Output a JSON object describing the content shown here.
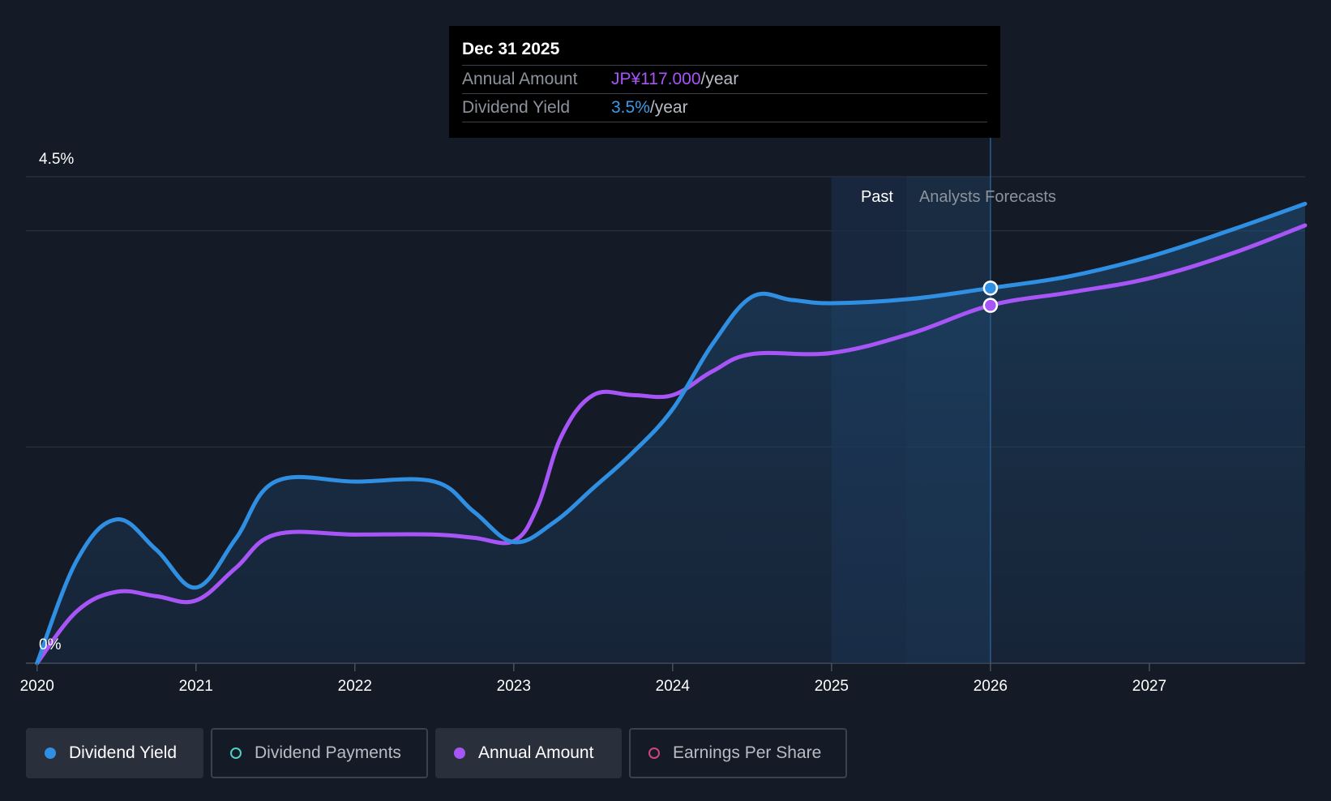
{
  "chart_data": {
    "type": "line",
    "title": "",
    "x_range": [
      2019.93,
      2027.98
    ],
    "y_range": [
      0,
      4.5
    ],
    "y_tick_labels": [
      "4.5%",
      "0%"
    ],
    "x_ticks": [
      2020,
      2021,
      2022,
      2023,
      2024,
      2025,
      2026,
      2027
    ],
    "x_tick_labels": [
      "2020",
      "2021",
      "2022",
      "2023",
      "2024",
      "2025",
      "2026",
      "2027"
    ],
    "gridlines_y": [
      4.5,
      4.0,
      2.0,
      0
    ],
    "regions": {
      "past_start": 2025.0,
      "forecast_start": 2025.47,
      "current": 2026.0,
      "past_label": "Past",
      "forecast_label": "Analysts Forecasts"
    },
    "series": [
      {
        "name": "Dividend Yield",
        "color": "#2f8fe3",
        "unit": "%",
        "points": [
          [
            2020.0,
            0.0
          ],
          [
            2020.25,
            0.95
          ],
          [
            2020.5,
            1.33
          ],
          [
            2020.75,
            1.05
          ],
          [
            2021.0,
            0.7
          ],
          [
            2021.25,
            1.15
          ],
          [
            2021.5,
            1.68
          ],
          [
            2022.0,
            1.68
          ],
          [
            2022.5,
            1.68
          ],
          [
            2022.75,
            1.4
          ],
          [
            2023.0,
            1.12
          ],
          [
            2023.25,
            1.3
          ],
          [
            2023.5,
            1.62
          ],
          [
            2023.75,
            1.95
          ],
          [
            2024.0,
            2.35
          ],
          [
            2024.25,
            2.95
          ],
          [
            2024.5,
            3.39
          ],
          [
            2024.75,
            3.36
          ],
          [
            2025.0,
            3.33
          ],
          [
            2025.5,
            3.37
          ],
          [
            2026.0,
            3.47
          ],
          [
            2026.5,
            3.58
          ],
          [
            2027.0,
            3.76
          ],
          [
            2027.5,
            4.0
          ],
          [
            2027.98,
            4.25
          ]
        ]
      },
      {
        "name": "Annual Amount",
        "color": "#a855f7",
        "unit": "JP¥",
        "points": [
          [
            2020.0,
            0.0
          ],
          [
            2020.25,
            0.48
          ],
          [
            2020.5,
            0.66
          ],
          [
            2020.75,
            0.62
          ],
          [
            2021.0,
            0.58
          ],
          [
            2021.25,
            0.88
          ],
          [
            2021.5,
            1.19
          ],
          [
            2022.0,
            1.19
          ],
          [
            2022.5,
            1.19
          ],
          [
            2022.75,
            1.16
          ],
          [
            2023.0,
            1.13
          ],
          [
            2023.15,
            1.45
          ],
          [
            2023.3,
            2.1
          ],
          [
            2023.5,
            2.48
          ],
          [
            2023.75,
            2.48
          ],
          [
            2024.0,
            2.48
          ],
          [
            2024.25,
            2.7
          ],
          [
            2024.5,
            2.86
          ],
          [
            2025.0,
            2.87
          ],
          [
            2025.5,
            3.05
          ],
          [
            2026.0,
            3.31
          ],
          [
            2026.5,
            3.43
          ],
          [
            2027.0,
            3.56
          ],
          [
            2027.5,
            3.78
          ],
          [
            2027.98,
            4.05
          ]
        ]
      }
    ],
    "highlight": {
      "x": 2026.0,
      "yield_value": 3.47,
      "amount_value": 3.31
    }
  },
  "tooltip": {
    "date": "Dec 31 2025",
    "rows": [
      {
        "label": "Annual Amount",
        "value": "JP¥117.000",
        "unit": "/year"
      },
      {
        "label": "Dividend Yield",
        "value": "3.5%",
        "unit": "/year"
      }
    ]
  },
  "legend": [
    {
      "label": "Dividend Yield",
      "color": "#2f8fe3",
      "active": true
    },
    {
      "label": "Dividend Payments",
      "color": "#4fd1c5",
      "active": false
    },
    {
      "label": "Annual Amount",
      "color": "#a855f7",
      "active": true
    },
    {
      "label": "Earnings Per Share",
      "color": "#d0457f",
      "active": false
    }
  ]
}
